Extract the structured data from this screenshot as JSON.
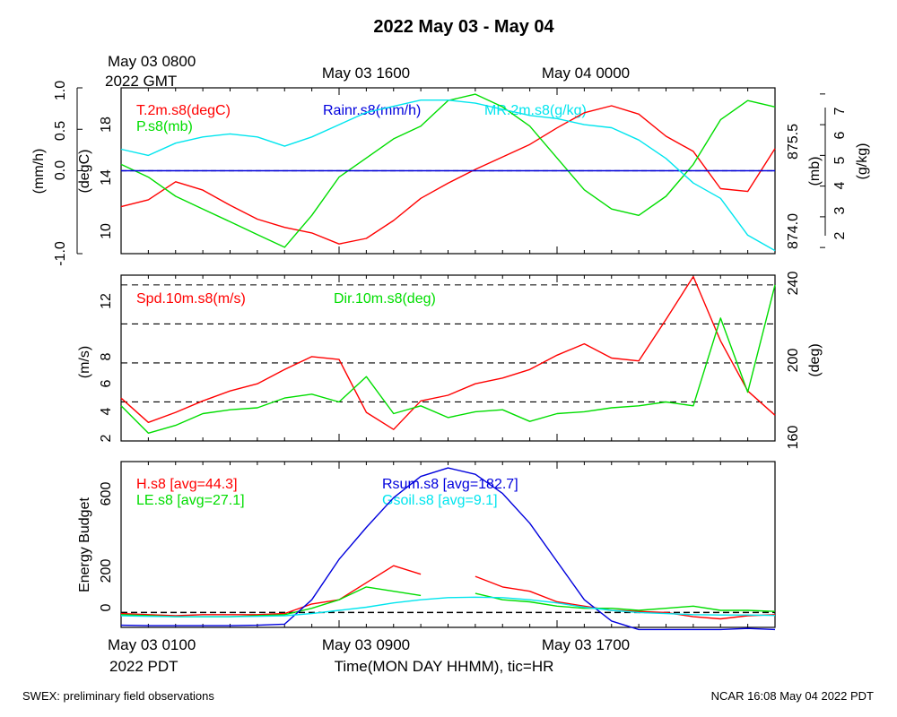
{
  "header": {
    "title": "2022 May 03 - May 04"
  },
  "footer": {
    "left_note": "SWEX: preliminary field observations",
    "right_note": "NCAR 16:08 May 04 2022 PDT"
  },
  "colors": {
    "red": "#ff0000",
    "green": "#00dd00",
    "blue": "#0000dd",
    "cyan": "#00e5ee",
    "black": "#000000"
  },
  "chart_data": [
    {
      "type": "line",
      "top_axis": {
        "labels": [
          "May 03 0800",
          "May 03 1600",
          "May 04 0000"
        ],
        "sublabel": "2022 GMT"
      },
      "axes": {
        "rain": {
          "label": "(mm/h)",
          "ticks": [
            "-1.0",
            "0.0",
            "0.5",
            "1.0"
          ],
          "ylim": [
            -1.0,
            1.0
          ]
        },
        "temp": {
          "label": "(degC)",
          "ticks": [
            "10",
            "14",
            "18"
          ],
          "ylim": [
            8.5,
            20.5
          ]
        },
        "pressure": {
          "label": "(mb)",
          "ticks": [
            "874.0",
            "875.5"
          ],
          "ylim": [
            873.8,
            876.4
          ]
        },
        "mixing_ratio": {
          "label": "(g/kg)",
          "ticks": [
            "2",
            "3",
            "4",
            "5",
            "6",
            "7"
          ],
          "ylim": [
            1.8,
            7.2
          ]
        }
      },
      "legend": [
        {
          "label": "T.2m.s8(degC)",
          "color": "#ff0000"
        },
        {
          "label": "P.s8(mb)",
          "color": "#00dd00"
        },
        {
          "label": "Rainr.s8(mm/h)",
          "color": "#0000dd"
        },
        {
          "label": "MR.2m.s8(g/kg)",
          "color": "#00e5ee"
        }
      ],
      "x_hours": [
        0,
        1,
        2,
        3,
        4,
        5,
        6,
        7,
        8,
        9,
        10,
        11,
        12,
        13,
        14,
        15,
        16,
        17,
        18,
        19,
        20,
        21,
        22,
        23,
        24
      ],
      "series": [
        {
          "name": "T.2m.s8(degC)",
          "axis": "temp",
          "values": [
            11.9,
            12.4,
            13.7,
            13.1,
            12.0,
            11.0,
            10.4,
            10.0,
            9.2,
            9.6,
            10.9,
            12.5,
            13.6,
            14.6,
            15.5,
            16.4,
            17.6,
            18.7,
            19.2,
            18.6,
            17.0,
            15.9,
            13.2,
            13.0,
            16.1
          ]
        },
        {
          "name": "P.s8(mb)",
          "axis": "pressure",
          "values": [
            875.2,
            875.0,
            874.7,
            874.5,
            874.3,
            874.1,
            873.9,
            874.4,
            875.0,
            875.3,
            875.6,
            875.8,
            876.2,
            876.3,
            876.1,
            875.8,
            875.3,
            874.8,
            874.5,
            874.4,
            874.7,
            875.2,
            875.9,
            876.2,
            876.1
          ]
        },
        {
          "name": "Rainr.s8(mm/h)",
          "axis": "rain",
          "values": [
            0,
            0,
            0,
            0,
            0,
            0,
            0,
            0,
            0,
            0,
            0,
            0,
            0,
            0,
            0,
            0,
            0,
            0,
            0,
            0,
            0,
            0,
            0,
            0,
            0
          ]
        },
        {
          "name": "MR.2m.s8(g/kg)",
          "axis": "mixing_ratio",
          "values": [
            5.2,
            5.0,
            5.4,
            5.6,
            5.7,
            5.6,
            5.3,
            5.6,
            6.0,
            6.4,
            6.6,
            6.8,
            6.8,
            6.7,
            6.5,
            6.3,
            6.2,
            6.0,
            5.9,
            5.5,
            4.9,
            4.1,
            3.6,
            2.4,
            1.9
          ]
        }
      ]
    },
    {
      "type": "line",
      "axes": {
        "speed": {
          "label": "(m/s)",
          "ticks": [
            "2",
            "4",
            "6",
            "8",
            "12"
          ],
          "ylim": [
            2,
            13.6
          ]
        },
        "direction": {
          "label": "(deg)",
          "ticks": [
            "160",
            "200",
            "240"
          ],
          "ylim": [
            160,
            245
          ]
        }
      },
      "reference_lines_deg": [
        160,
        180,
        200,
        220,
        240
      ],
      "legend": [
        {
          "label": "Spd.10m.s8(m/s)",
          "color": "#ff0000"
        },
        {
          "label": "Dir.10m.s8(deg)",
          "color": "#00dd00"
        }
      ],
      "x_hours": [
        0,
        1,
        2,
        3,
        4,
        5,
        6,
        7,
        8,
        9,
        10,
        11,
        12,
        13,
        14,
        15,
        16,
        17,
        18,
        19,
        20,
        21,
        22,
        23,
        24
      ],
      "series": [
        {
          "name": "Spd.10m.s8(m/s)",
          "axis": "speed",
          "values": [
            5.0,
            3.3,
            4.0,
            4.8,
            5.5,
            6.0,
            7.0,
            7.9,
            7.7,
            4.0,
            2.8,
            4.8,
            5.2,
            6.0,
            6.4,
            7.0,
            8.0,
            8.8,
            7.8,
            7.6,
            10.5,
            13.5,
            9.0,
            5.5,
            3.8
          ]
        },
        {
          "name": "Dir.10m.s8(deg)",
          "axis": "direction",
          "values": [
            178,
            164,
            168,
            174,
            176,
            177,
            182,
            184,
            180,
            193,
            174,
            178,
            172,
            175,
            176,
            170,
            174,
            175,
            177,
            178,
            180,
            178,
            223,
            185,
            240
          ]
        }
      ]
    },
    {
      "type": "line",
      "ylabel": "Energy Budget",
      "yticks": [
        "0",
        "200",
        "600"
      ],
      "ylim": [
        -70,
        710
      ],
      "bottom_axis": {
        "labels": [
          "May 03 0100",
          "May 03 0900",
          "May 03 1700"
        ],
        "sublabel": "2022 PDT",
        "xlabel": "Time(MON DAY HHMM), tic=HR"
      },
      "legend": [
        {
          "label": "H.s8 [avg=44.3]",
          "color": "#ff0000"
        },
        {
          "label": "LE.s8 [avg=27.1]",
          "color": "#00dd00"
        },
        {
          "label": "Rsum.s8 [avg=182.7]",
          "color": "#0000dd"
        },
        {
          "label": "Gsoil.s8 [avg=9.1]",
          "color": "#00e5ee"
        }
      ],
      "x_hours": [
        0,
        1,
        2,
        3,
        4,
        5,
        6,
        7,
        8,
        9,
        10,
        11,
        12,
        13,
        14,
        15,
        16,
        17,
        18,
        19,
        20,
        21,
        22,
        23,
        24
      ],
      "series": [
        {
          "name": "H.s8 [avg=44.3]",
          "values": [
            -5,
            -10,
            -15,
            -10,
            -10,
            -10,
            -5,
            40,
            60,
            140,
            220,
            180,
            null,
            170,
            120,
            100,
            50,
            30,
            10,
            5,
            0,
            -20,
            -30,
            -15,
            -10
          ]
        },
        {
          "name": "LE.s8 [avg=27.1]",
          "values": [
            -10,
            -15,
            -20,
            -20,
            -20,
            -15,
            -10,
            20,
            60,
            120,
            100,
            80,
            null,
            90,
            60,
            50,
            30,
            20,
            20,
            10,
            20,
            30,
            10,
            10,
            5
          ]
        },
        {
          "name": "Rsum.s8 [avg=182.7]",
          "values": [
            -60,
            -62,
            -62,
            -62,
            -62,
            -60,
            -55,
            60,
            250,
            400,
            540,
            640,
            680,
            650,
            560,
            420,
            240,
            60,
            -40,
            -80,
            -80,
            -80,
            -80,
            -75,
            -80
          ]
        },
        {
          "name": "Gsoil.s8 [avg=9.1]",
          "values": [
            -15,
            -18,
            -20,
            -20,
            -20,
            -18,
            -15,
            -5,
            10,
            25,
            45,
            60,
            70,
            72,
            70,
            60,
            45,
            25,
            10,
            0,
            -5,
            -10,
            -12,
            -12,
            -14
          ]
        }
      ]
    }
  ]
}
